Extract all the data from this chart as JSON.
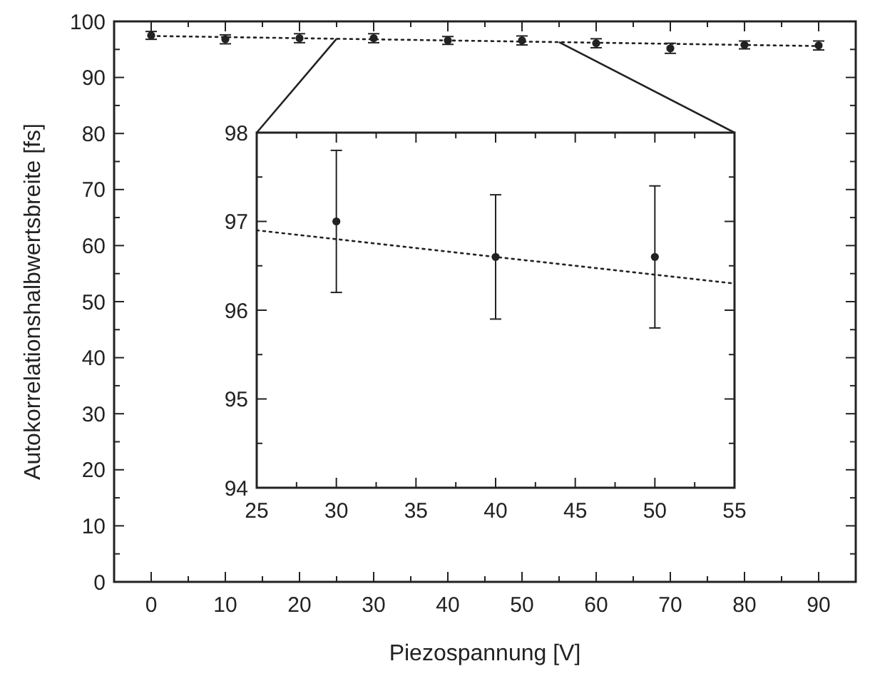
{
  "chart_data": [
    {
      "type": "scatter",
      "xlabel": "Piezospannung [V]",
      "ylabel": "Autokorrelationshalbwertsbreite [fs]",
      "xlim": [
        -5,
        95
      ],
      "ylim": [
        0,
        100
      ],
      "xticks": [
        0,
        {
          "value": 5,
          "label": null
        },
        10,
        {
          "value": 15,
          "label": null
        },
        20,
        {
          "value": 25,
          "label": null
        },
        30,
        {
          "value": 35,
          "label": null
        },
        40,
        {
          "value": 45,
          "label": null
        },
        50,
        {
          "value": 55,
          "label": null
        },
        60,
        {
          "value": 65,
          "label": null
        },
        70,
        {
          "value": 75,
          "label": null
        },
        80,
        {
          "value": 85,
          "label": null
        },
        90
      ],
      "yticks": [
        0,
        {
          "value": 5,
          "label": null
        },
        10,
        {
          "value": 15,
          "label": null
        },
        20,
        {
          "value": 25,
          "label": null
        },
        30,
        {
          "value": 35,
          "label": null
        },
        40,
        {
          "value": 45,
          "label": null
        },
        50,
        {
          "value": 55,
          "label": null
        },
        60,
        {
          "value": 65,
          "label": null
        },
        70,
        {
          "value": 75,
          "label": null
        },
        80,
        {
          "value": 85,
          "label": null
        },
        90,
        {
          "value": 95,
          "label": null
        },
        100
      ],
      "series": [
        {
          "color": "#222222",
          "marker": "circle",
          "x": [
            0,
            10,
            20,
            30,
            40,
            50,
            60,
            70,
            80,
            90
          ],
          "values": [
            97.5,
            96.8,
            97.0,
            97.0,
            96.6,
            96.6,
            96.1,
            95.2,
            95.8,
            95.7
          ],
          "errors": [
            0.7,
            0.8,
            0.8,
            0.8,
            0.7,
            0.8,
            0.8,
            0.9,
            0.7,
            0.8
          ]
        },
        {
          "type": "line",
          "color": "#222222",
          "line_style": "dotted",
          "x": [
            0,
            90
          ],
          "values": [
            97.4,
            95.6
          ]
        }
      ]
    },
    {
      "type": "scatter",
      "xlim": [
        25,
        55
      ],
      "ylim": [
        94,
        98
      ],
      "xticks": [
        25,
        {
          "value": 27.5,
          "label": null
        },
        30,
        {
          "value": 32.5,
          "label": null
        },
        35,
        {
          "value": 37.5,
          "label": null
        },
        40,
        {
          "value": 42.5,
          "label": null
        },
        45,
        {
          "value": 47.5,
          "label": null
        },
        50,
        {
          "value": 52.5,
          "label": null
        },
        55
      ],
      "yticks": [
        94,
        {
          "value": 94.5,
          "label": null
        },
        95,
        {
          "value": 95.5,
          "label": null
        },
        96,
        {
          "value": 96.5,
          "label": null
        },
        97,
        {
          "value": 97.5,
          "label": null
        },
        98
      ],
      "series": [
        {
          "color": "#222222",
          "marker": "circle",
          "x": [
            30,
            40,
            50
          ],
          "values": [
            97.0,
            96.6,
            96.6
          ],
          "errors": [
            0.8,
            0.7,
            0.8
          ]
        },
        {
          "type": "line",
          "color": "#222222",
          "line_style": "dotted",
          "x": [
            25,
            55
          ],
          "values": [
            96.9,
            96.3
          ]
        }
      ]
    }
  ]
}
